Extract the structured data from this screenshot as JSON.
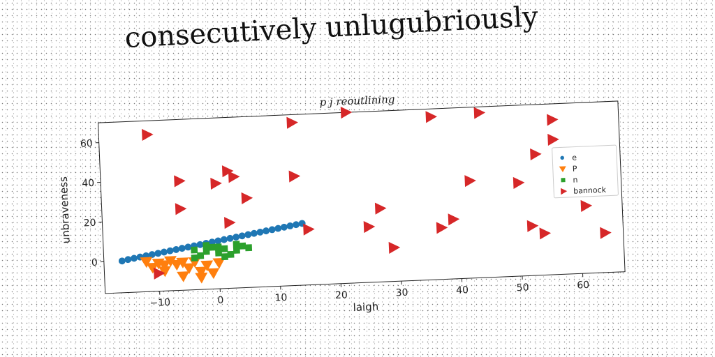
{
  "page": {
    "title": "consecutively unlugubriously"
  },
  "colors": {
    "e": "#1f77b4",
    "P": "#ff7f0e",
    "n": "#2ca02c",
    "bannock": "#d62728"
  },
  "chart_data": {
    "type": "scatter",
    "title": "p j reoutlining",
    "xlabel": "laigh",
    "ylabel": "unbraveness",
    "xlim": [
      -19,
      67
    ],
    "ylim": [
      -16,
      70
    ],
    "xticks": [
      -10,
      0,
      10,
      20,
      30,
      40,
      50,
      60
    ],
    "yticks": [
      0,
      20,
      40,
      60
    ],
    "grid": false,
    "legend_position": "right",
    "series": [
      {
        "name": "e",
        "marker": "circle",
        "color": "#1f77b4",
        "points": [
          [
            -16,
            0
          ],
          [
            -15,
            0.6
          ],
          [
            -14,
            1.1
          ],
          [
            -13,
            1.6
          ],
          [
            -12,
            2.1
          ],
          [
            -11,
            2.6
          ],
          [
            -10,
            3.1
          ],
          [
            -9,
            3.6
          ],
          [
            -8,
            4.1
          ],
          [
            -7,
            4.6
          ],
          [
            -6,
            5.1
          ],
          [
            -5,
            5.6
          ],
          [
            -4,
            6.1
          ],
          [
            -3,
            6.6
          ],
          [
            -2,
            7.1
          ],
          [
            -1,
            7.6
          ],
          [
            0,
            8.1
          ],
          [
            1,
            8.6
          ],
          [
            2,
            9.1
          ],
          [
            3,
            9.6
          ],
          [
            4,
            10.1
          ],
          [
            5,
            10.6
          ],
          [
            6,
            11.1
          ],
          [
            7,
            11.6
          ],
          [
            8,
            12.1
          ],
          [
            9,
            12.6
          ],
          [
            10,
            13.1
          ],
          [
            11,
            13.6
          ],
          [
            12,
            14.1
          ],
          [
            13,
            14.6
          ],
          [
            14,
            15.1
          ]
        ]
      },
      {
        "name": "P",
        "marker": "triangle-down",
        "color": "#ff7f0e",
        "points": [
          [
            -12,
            -1
          ],
          [
            -11,
            -4
          ],
          [
            -10,
            -2
          ],
          [
            -9,
            -6
          ],
          [
            -8,
            -1
          ],
          [
            -7,
            -3
          ],
          [
            -6,
            -9
          ],
          [
            -5,
            -5
          ],
          [
            -4,
            -2
          ],
          [
            -3,
            -7
          ],
          [
            -2,
            -4
          ],
          [
            -1,
            -8
          ],
          [
            0,
            -3
          ],
          [
            -3,
            -10
          ],
          [
            -6,
            -2
          ],
          [
            -9,
            -3
          ]
        ]
      },
      {
        "name": "n",
        "marker": "square",
        "color": "#2ca02c",
        "points": [
          [
            -4,
            4
          ],
          [
            -3,
            1
          ],
          [
            -2,
            3
          ],
          [
            -1,
            5
          ],
          [
            0,
            2
          ],
          [
            1,
            4
          ],
          [
            2,
            1
          ],
          [
            3,
            3
          ],
          [
            4,
            5
          ],
          [
            5,
            4
          ],
          [
            -4,
            0
          ],
          [
            -2,
            6
          ],
          [
            0,
            5
          ],
          [
            1,
            0
          ],
          [
            3,
            6
          ]
        ]
      },
      {
        "name": "bannock",
        "marker": "triangle-right",
        "color": "#d62728",
        "points": [
          [
            -11,
            63
          ],
          [
            13,
            66
          ],
          [
            22,
            70
          ],
          [
            36,
            66
          ],
          [
            44,
            67
          ],
          [
            56,
            62
          ],
          [
            56,
            52
          ],
          [
            53,
            45
          ],
          [
            -6,
            39
          ],
          [
            0,
            37
          ],
          [
            2,
            43
          ],
          [
            3,
            40
          ],
          [
            13,
            39
          ],
          [
            5,
            29
          ],
          [
            -6,
            25
          ],
          [
            2,
            17
          ],
          [
            15,
            12
          ],
          [
            27,
            21
          ],
          [
            25,
            12
          ],
          [
            29,
            1
          ],
          [
            37,
            10
          ],
          [
            39,
            14
          ],
          [
            42,
            33
          ],
          [
            50,
            31
          ],
          [
            52,
            9
          ],
          [
            54,
            5
          ],
          [
            61,
            18
          ],
          [
            64,
            4
          ],
          [
            -10,
            -7
          ]
        ]
      }
    ]
  }
}
